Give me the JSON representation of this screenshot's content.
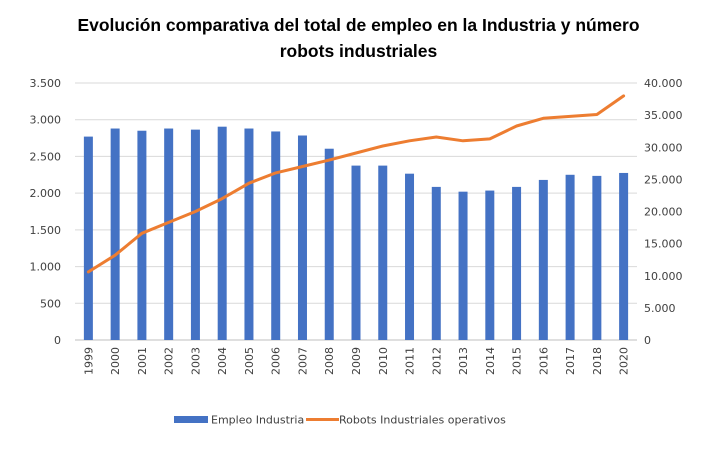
{
  "chart_data": {
    "type": "bar",
    "title": "Evolución comparativa del total de empleo en la Industria y número robots industriales",
    "title_lines": [
      "Evolución comparativa del total de empleo en la Industria y número",
      "robots industriales"
    ],
    "xlabel": "",
    "ylabel": "",
    "y2label": "",
    "categories": [
      "1999",
      "2000",
      "2001",
      "2002",
      "2003",
      "2004",
      "2005",
      "2006",
      "2007",
      "2008",
      "2009",
      "2010",
      "2011",
      "2012",
      "2013",
      "2014",
      "2015",
      "2016",
      "2017",
      "2018",
      "2020"
    ],
    "series": [
      {
        "name": "Empleo Industria",
        "type": "bar",
        "axis": "left",
        "color": "#4472C4",
        "values": [
          2770,
          2880,
          2850,
          2880,
          2865,
          2905,
          2880,
          2840,
          2785,
          2605,
          2375,
          2375,
          2265,
          2085,
          2020,
          2035,
          2085,
          2180,
          2250,
          2235,
          2275
        ]
      },
      {
        "name": "Robots Industriales operativos",
        "type": "line",
        "axis": "right",
        "color": "#ED7D31",
        "values": [
          10600,
          13200,
          16600,
          18300,
          20000,
          22000,
          24400,
          26000,
          27000,
          28000,
          29100,
          30200,
          31000,
          31600,
          31000,
          31300,
          33300,
          34500,
          34800,
          35100,
          38000
        ]
      }
    ],
    "ylim": [
      0,
      3500
    ],
    "y2lim": [
      0,
      40000
    ],
    "yticks": [
      "0",
      "500",
      "1.000",
      "1.500",
      "2.000",
      "2.500",
      "3.000",
      "3.500"
    ],
    "yticks_values": [
      0,
      500,
      1000,
      1500,
      2000,
      2500,
      3000,
      3500
    ],
    "y2ticks": [
      "0",
      "5.000",
      "10.000",
      "15.000",
      "20.000",
      "25.000",
      "30.000",
      "35.000",
      "40.000"
    ],
    "y2ticks_values": [
      0,
      5000,
      10000,
      15000,
      20000,
      25000,
      30000,
      35000,
      40000
    ],
    "grid": true,
    "gridline_color": "#D9D9D9",
    "legend": {
      "position": "bottom",
      "entries": [
        "Empleo Industria",
        "Robots Industriales operativos"
      ]
    }
  }
}
